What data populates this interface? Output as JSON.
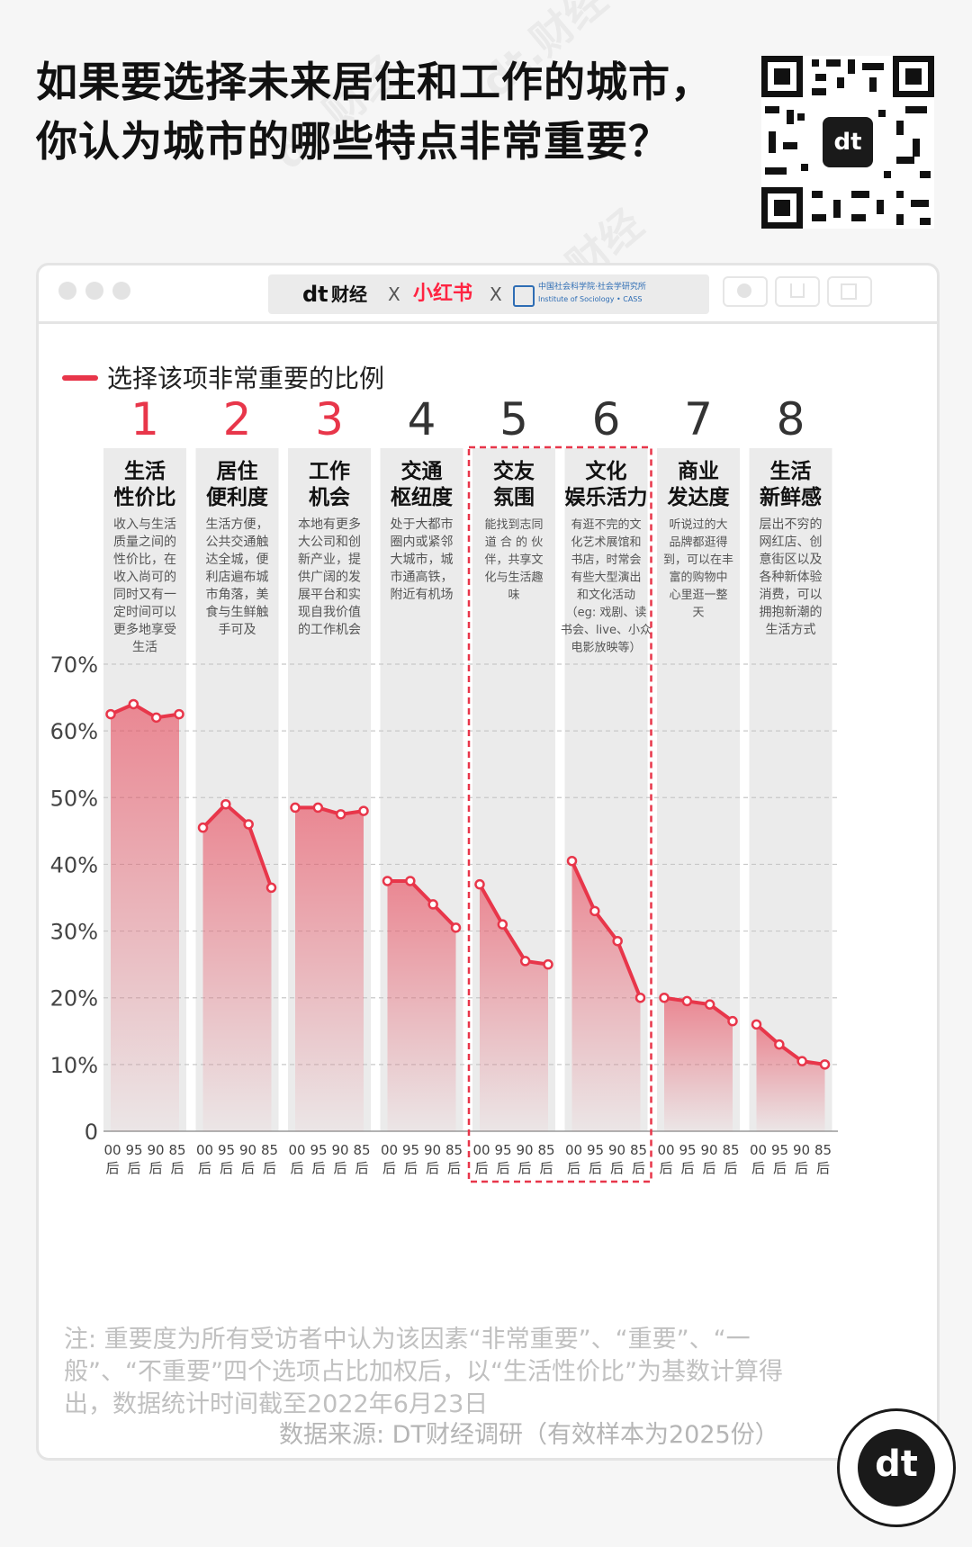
{
  "title_lines": [
    "如果要选择未来居住和工作的城市，",
    "你认为城市的哪些特点非常重要？"
  ],
  "watermark": "dt.财经",
  "brand_bar": {
    "dt": "dt",
    "dt_text": "财经",
    "x1": "X",
    "xhs": "小红书",
    "x2": "X",
    "cass_line1": "中国社会科学院·社会学研究所",
    "cass_line2": "Institute of Sociology • CASS"
  },
  "legend_label": "选择该项非常重要的比例",
  "note": "注: 重要度为所有受访者中认为该因素“非常重要”、“重要”、“一般”、“不重要”四个选项占比加权后，以“生活性价比”为基数计算得出，数据统计时间截至2022年6月23日",
  "source": "数据来源: DT财经调研（有效样本为2025份）",
  "colors": {
    "accent": "#e8364a",
    "rank_red": "#e8364a",
    "rank_gray": "#333333",
    "column_bg": "#ebebeb",
    "gridline": "#c8c8c8"
  },
  "chart_data": {
    "type": "line",
    "ylim": [
      0,
      70
    ],
    "yticks": [
      "0",
      "10%",
      "20%",
      "30%",
      "40%",
      "50%",
      "60%",
      "70%"
    ],
    "x_groups": [
      "00后",
      "95后",
      "90后",
      "85后"
    ],
    "highlighted": [
      5,
      6
    ],
    "series": [
      {
        "rank": "1",
        "title": [
          "生活",
          "性价比"
        ],
        "desc": [
          "收入与生活",
          "质量之间的",
          "性价比，在",
          "收入尚可的",
          "同时又有一",
          "定时间可以",
          "更多地享受",
          "生活"
        ],
        "values": [
          62.5,
          64.0,
          62.0,
          62.5
        ]
      },
      {
        "rank": "2",
        "title": [
          "居住",
          "便利度"
        ],
        "desc": [
          "生活方便，",
          "公共交通触",
          "达全城，便",
          "利店遍布城",
          "市角落，美",
          "食与生鲜触",
          "手可及"
        ],
        "values": [
          45.5,
          49.0,
          46.0,
          36.5
        ]
      },
      {
        "rank": "3",
        "title": [
          "工作",
          "机会"
        ],
        "desc": [
          "本地有更多",
          "大公司和创",
          "新产业，提",
          "供广阔的发",
          "展平台和实",
          "现自我价值",
          "的工作机会"
        ],
        "values": [
          48.5,
          48.5,
          47.5,
          48.0
        ]
      },
      {
        "rank": "4",
        "title": [
          "交通",
          "枢纽度"
        ],
        "desc": [
          "处于大都市",
          "圈内或紧邻",
          "大城市，城",
          "市通高铁，",
          "附近有机场"
        ],
        "values": [
          37.5,
          37.5,
          34.0,
          30.5
        ]
      },
      {
        "rank": "5",
        "title": [
          "交友",
          "氛围"
        ],
        "desc": [
          "能找到志同",
          "道 合 的 伙",
          "伴，共享文",
          "化与生活趣",
          "味"
        ],
        "values": [
          37.0,
          31.0,
          25.5,
          25.0
        ]
      },
      {
        "rank": "6",
        "title": [
          "文化",
          "娱乐活力"
        ],
        "desc": [
          "有逛不完的文",
          "化艺术展馆和",
          "书店，时常会",
          "有些大型演出",
          "和文化活动",
          "（eg: 戏剧、读",
          "书会、live、小众",
          "电影放映等）"
        ],
        "values": [
          40.5,
          33.0,
          28.5,
          20.0
        ]
      },
      {
        "rank": "7",
        "title": [
          "商业",
          "发达度"
        ],
        "desc": [
          "听说过的大",
          "品牌都逛得",
          "到，可以在丰",
          "富的购物中",
          "心里逛一整",
          "天"
        ],
        "values": [
          20.0,
          19.5,
          19.0,
          16.5
        ]
      },
      {
        "rank": "8",
        "title": [
          "生活",
          "新鲜感"
        ],
        "desc": [
          "层出不穷的",
          "网红店、创",
          "意街区以及",
          "各种新体验",
          "消费，可以",
          "拥抱新潮的",
          "生活方式"
        ],
        "values": [
          16.0,
          13.0,
          10.5,
          10.0
        ]
      }
    ]
  }
}
